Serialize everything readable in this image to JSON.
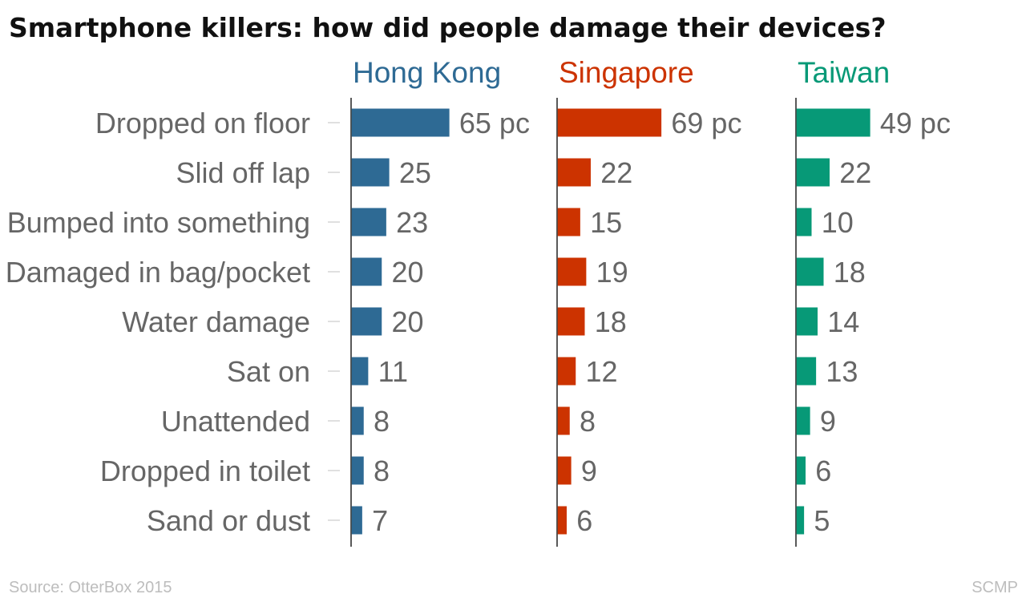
{
  "chart_data": {
    "type": "bar",
    "orientation": "horizontal",
    "layout": "small-multiples",
    "title": "Smartphone killers: how did people damage their devices?",
    "categories": [
      "Dropped on floor",
      "Slid off lap",
      "Bumped into something",
      "Damaged in bag/pocket",
      "Water damage",
      "Sat on",
      "Unattended",
      "Dropped in toilet",
      "Sand or dust"
    ],
    "series": [
      {
        "name": "Hong Kong",
        "color": "#2e6a94",
        "values": [
          65,
          25,
          23,
          20,
          20,
          11,
          8,
          8,
          7
        ]
      },
      {
        "name": "Singapore",
        "color": "#cc3300",
        "values": [
          69,
          22,
          15,
          19,
          18,
          12,
          8,
          9,
          6
        ]
      },
      {
        "name": "Taiwan",
        "color": "#079977",
        "values": [
          49,
          22,
          10,
          18,
          14,
          13,
          9,
          6,
          5
        ]
      }
    ],
    "first_value_suffix": " pc",
    "grid": false
  },
  "footer": {
    "source": "Source: OtterBox 2015",
    "credit": "SCMP"
  }
}
